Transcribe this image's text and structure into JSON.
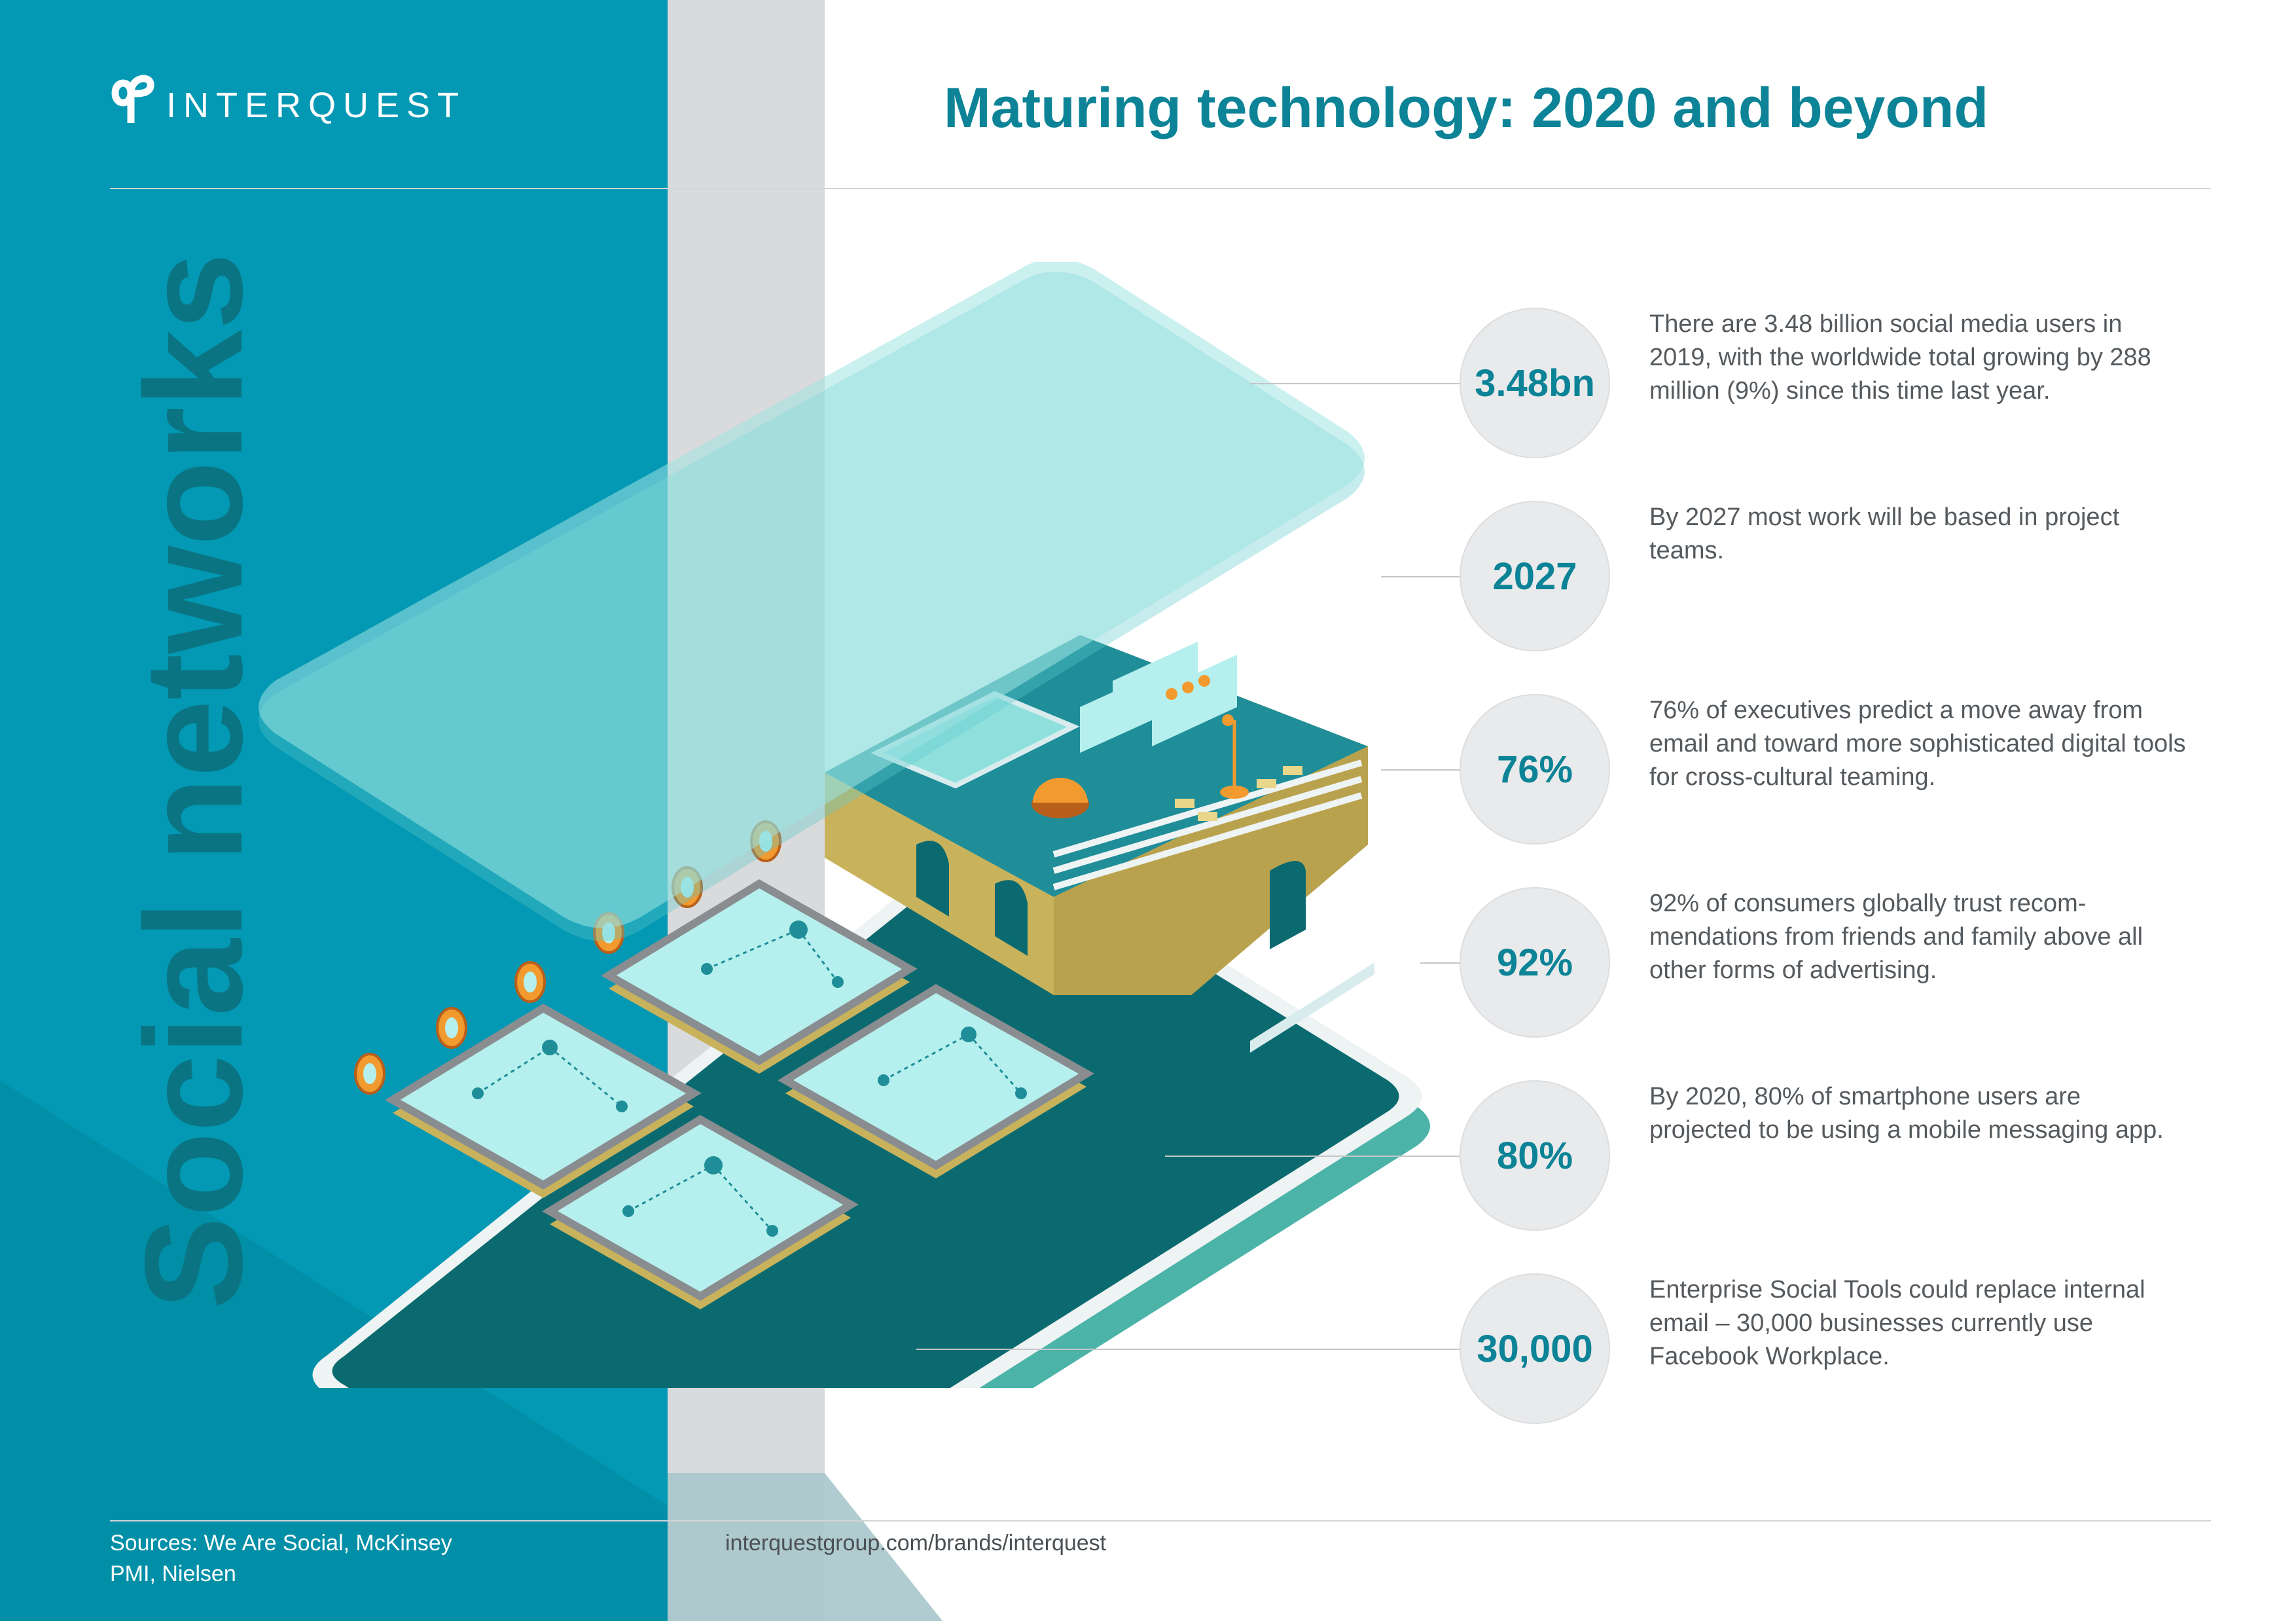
{
  "brand": {
    "name": "INTERQUEST",
    "logo_icon": "interquest-logo-icon"
  },
  "header": {
    "title": "Maturing technology: 2020 and beyond"
  },
  "side_title": "Social networks",
  "illustration": {
    "icon": "isometric-smartphone-network-icon"
  },
  "stats": [
    {
      "value": "3.48bn",
      "text": "There are 3.48 billion social media users in 2019, with the worldwide total growing by 288 million (9%) since this time last year."
    },
    {
      "value": "2027",
      "text": "By 2027 most work will be based in project teams."
    },
    {
      "value": "76%",
      "text": "76% of executives predict a move away from email and toward more sophisticated digital tools for cross-cultural teaming."
    },
    {
      "value": "92%",
      "text": "92% of consumers globally trust recom-mendations from friends and family above all other forms of advertising."
    },
    {
      "value": "80%",
      "text": "By 2020, 80% of smartphone users are projected to be using a mobile messaging app."
    },
    {
      "value": "30,000",
      "text": "Enterprise Social Tools could replace internal email – 30,000 businesses currently use Facebook Workplace."
    }
  ],
  "footer": {
    "sources_line1": "Sources: We Are Social, McKinsey",
    "sources_line2": "PMI, Nielsen",
    "url": "interquestgroup.com/brands/interquest"
  },
  "colors": {
    "teal_panel": "#0398b3",
    "grey_band": "#d9dadb",
    "title_teal": "#0c8396",
    "body_text": "#555a5e",
    "circle_fill": "#e9eaeb",
    "accent_orange": "#f29a2e",
    "accent_gold": "#c9b25c"
  }
}
